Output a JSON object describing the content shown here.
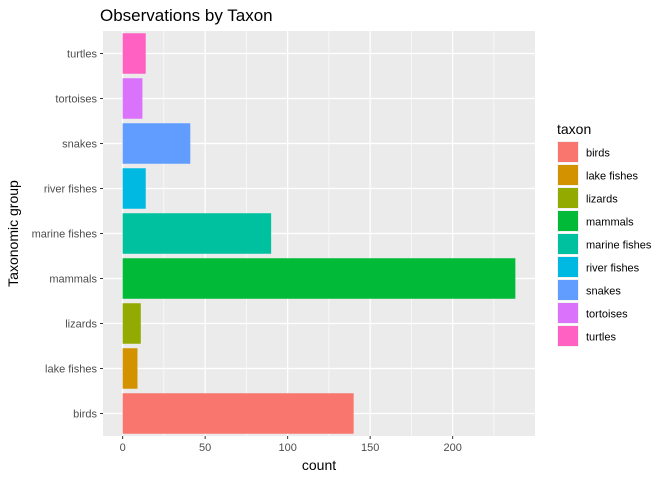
{
  "chart_data": {
    "type": "bar",
    "orientation": "horizontal",
    "title": "Observations by Taxon",
    "xlabel": "count",
    "ylabel": "Taxonomic group",
    "categories": [
      "birds",
      "lake fishes",
      "lizards",
      "mammals",
      "marine fishes",
      "river fishes",
      "snakes",
      "tortoises",
      "turtles"
    ],
    "values": [
      140,
      9,
      11,
      238,
      90,
      14,
      41,
      12,
      14
    ],
    "colors": [
      "#F8766D",
      "#D39200",
      "#93AA00",
      "#00BA38",
      "#00C19F",
      "#00B9E3",
      "#619CFF",
      "#DB72FB",
      "#FF61C3"
    ],
    "xlim": [
      -11.9,
      249.9
    ],
    "xticks": [
      0,
      50,
      100,
      150,
      200
    ],
    "grid": true,
    "legend": {
      "title": "taxon",
      "placement": "right",
      "entries": [
        "birds",
        "lake fishes",
        "lizards",
        "mammals",
        "marine fishes",
        "river fishes",
        "snakes",
        "tortoises",
        "turtles"
      ]
    }
  }
}
